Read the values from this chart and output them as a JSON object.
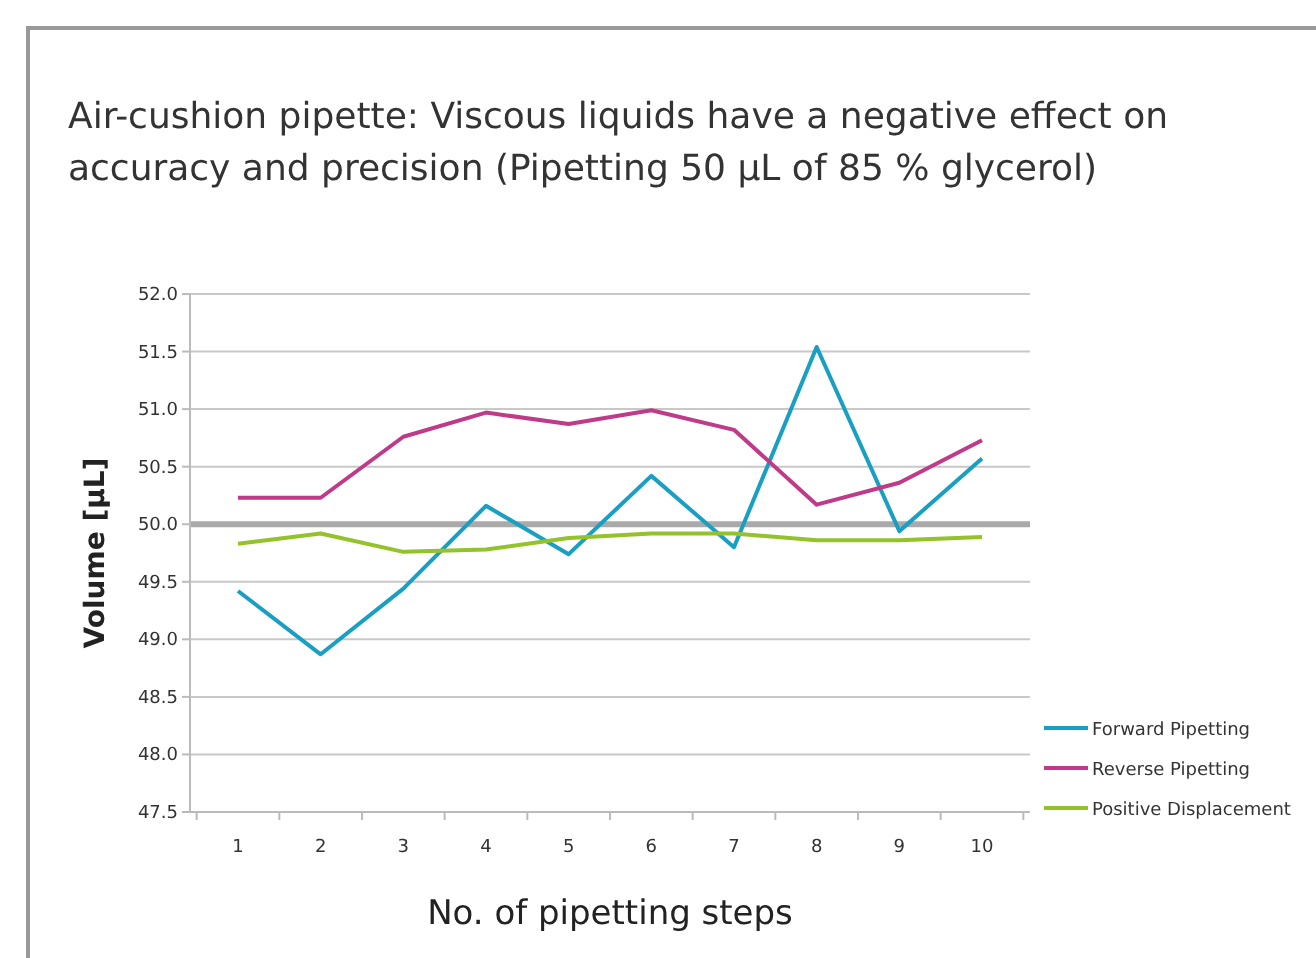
{
  "chart_data": {
    "type": "line",
    "title": "Air-cushion pipette: Viscous liquids have a negative effect on accuracy and precision (Pipetting 50 µL of 85 % glycerol)",
    "xlabel": "No. of pipetting steps",
    "ylabel": "Volume [µL]",
    "categories": [
      "1",
      "2",
      "3",
      "4",
      "5",
      "6",
      "7",
      "8",
      "9",
      "10"
    ],
    "series": [
      {
        "name": "Forward Pipetting",
        "color": "#1a9fc4",
        "values": [
          49.42,
          48.87,
          49.44,
          50.16,
          49.74,
          50.42,
          49.8,
          51.54,
          49.94,
          50.57
        ]
      },
      {
        "name": "Reverse Pipetting",
        "color": "#c03a8a",
        "values": [
          50.23,
          50.23,
          50.76,
          50.97,
          50.87,
          50.99,
          50.82,
          50.17,
          50.36,
          50.73
        ]
      },
      {
        "name": "Positive Displacement",
        "color": "#93c22a",
        "values": [
          49.83,
          49.92,
          49.76,
          49.78,
          49.88,
          49.92,
          49.92,
          49.86,
          49.86,
          49.89
        ]
      }
    ],
    "ylim": [
      47.5,
      52
    ],
    "yticks": [
      {
        "value": 47.5,
        "label": "47.5"
      },
      {
        "value": 48,
        "label": "48.0"
      },
      {
        "value": 48.5,
        "label": "48.5"
      },
      {
        "value": 49,
        "label": "49.0"
      },
      {
        "value": 49.5,
        "label": "49.5"
      },
      {
        "value": 50,
        "label": "50.0"
      },
      {
        "value": 50.5,
        "label": "50.5"
      },
      {
        "value": 51,
        "label": "51.0"
      },
      {
        "value": 51.5,
        "label": "51.5"
      },
      {
        "value": 52,
        "label": "52.0"
      }
    ],
    "grid": "y",
    "legend": "right",
    "marker": "none",
    "line_style": "solid",
    "ref_lines": [
      {
        "axis": "y",
        "value": 50,
        "color": "#aaaaaa"
      }
    ]
  }
}
